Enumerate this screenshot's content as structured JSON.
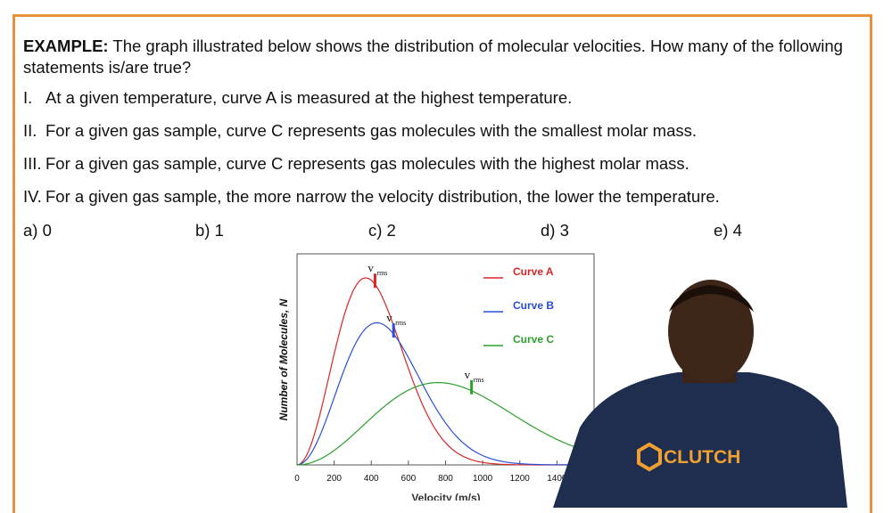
{
  "question": {
    "label": "EXAMPLE:",
    "text": "The graph illustrated below shows the distribution of molecular velocities. How many of the following statements is/are true?"
  },
  "statements": [
    {
      "num": "I.",
      "text": "At a given temperature, curve A is measured at the highest temperature."
    },
    {
      "num": "II.",
      "text": "For a given gas sample, curve C represents gas molecules with the smallest molar mass."
    },
    {
      "num": "III.",
      "text": "For a given gas sample, curve C represents gas molecules with the highest molar mass."
    },
    {
      "num": "IV.",
      "text": "For a given gas sample, the more narrow the velocity distribution, the lower the temperature."
    }
  ],
  "options": [
    "a) 0",
    "b) 1",
    "c) 2",
    "d) 3",
    "e) 4"
  ],
  "logo_text": "CLUTCH",
  "chart_data": {
    "type": "line",
    "ylabel": "Number of Molecules, N",
    "xlabel": "Velocity (m/s)",
    "xticks": [
      0,
      200,
      400,
      600,
      800,
      1000,
      1200,
      1400
    ],
    "xlim": [
      0,
      1600
    ],
    "rms_label": "v",
    "rms_sub": "rms",
    "series": [
      {
        "name": "Curve A",
        "color": "#d62728",
        "peak_x": 370,
        "peak_y": 1.0,
        "rms_x": 420
      },
      {
        "name": "Curve B",
        "color": "#2a4fd6",
        "peak_x": 430,
        "peak_y": 0.76,
        "rms_x": 520
      },
      {
        "name": "Curve C",
        "color": "#2ca02c",
        "peak_x": 760,
        "peak_y": 0.44,
        "rms_x": 940
      }
    ]
  }
}
